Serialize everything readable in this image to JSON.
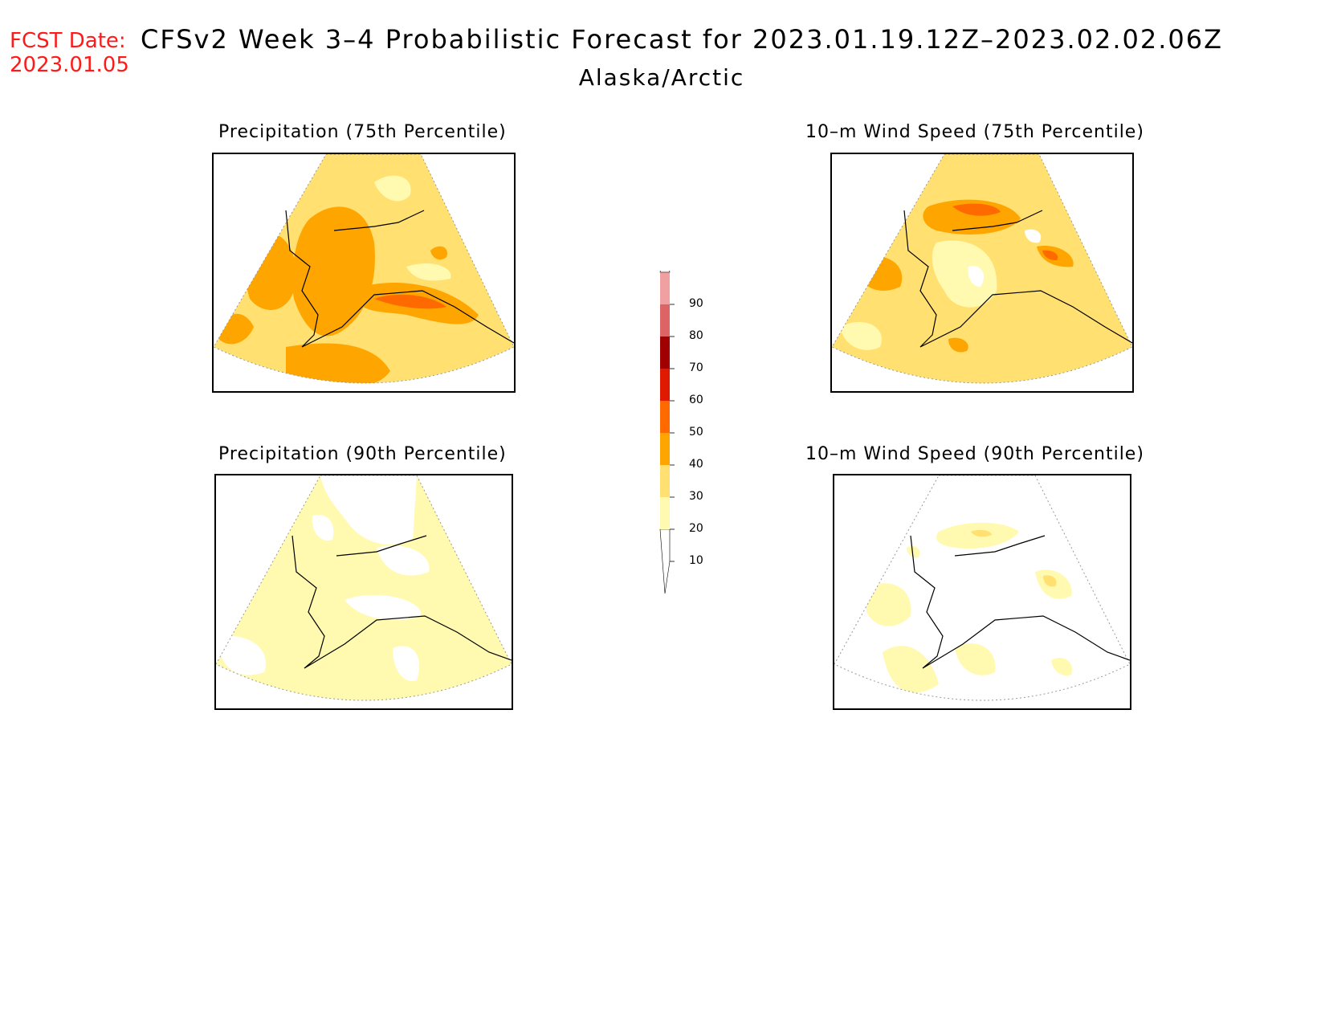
{
  "header": {
    "fcst_label": "FCST Date:",
    "fcst_date": "2023.01.05",
    "title": "CFSv2 Week 3–4 Probabilistic Forecast for 2023.01.19.12Z–2023.02.02.06Z",
    "region": "Alaska/Arctic"
  },
  "panels": [
    {
      "title": "Precipitation (75th Percentile)",
      "variable": "precipitation",
      "percentile": 75,
      "dominant_category": "20-30"
    },
    {
      "title": "10–m Wind Speed (75th Percentile)",
      "variable": "10-m wind speed",
      "percentile": 75,
      "dominant_category": "20-30"
    },
    {
      "title": "Precipitation (90th Percentile)",
      "variable": "precipitation",
      "percentile": 90,
      "dominant_category": "10-20"
    },
    {
      "title": "10–m Wind Speed (90th Percentile)",
      "variable": "10-m wind speed",
      "percentile": 90,
      "dominant_category": "0-10"
    }
  ],
  "colorbar": {
    "levels": [
      "10",
      "20",
      "30",
      "40",
      "50",
      "60",
      "70",
      "80",
      "90"
    ],
    "colors": [
      "#ffffff",
      "#fffab0",
      "#ffe070",
      "#ffa500",
      "#ff6a00",
      "#e01a00",
      "#a00000",
      "#dc6464",
      "#f0a0a0",
      "#ffe6e6"
    ]
  },
  "colors": {
    "fcst_red": "#ff1a1a",
    "coast": "#000000",
    "grid": "#999999"
  }
}
